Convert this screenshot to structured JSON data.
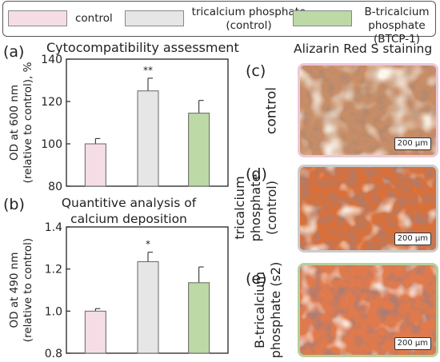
{
  "legend": {
    "items": [
      {
        "label": "control",
        "color": "#f5dde6"
      },
      {
        "label": "tricalcium phosphate\n(control)",
        "color": "#e6e6e6"
      },
      {
        "label": "B-tricalcium\nphosphate (BTCP-1)",
        "color": "#bcd9a6"
      }
    ]
  },
  "chart_data": [
    {
      "type": "bar",
      "panel": "(a)",
      "title": "Cytocompatibility assessment",
      "ylabel": "OD at 600 nm\n(relative to control), %",
      "ylim": [
        80,
        140
      ],
      "yticks": [
        "80",
        "100",
        "120",
        "140"
      ],
      "tick_values": [
        80,
        100,
        120,
        140
      ],
      "categories": [
        "control",
        "tricalcium phosphate (control)",
        "B-tricalcium phosphate (BTCP-1)"
      ],
      "values": [
        100,
        125,
        114.5
      ],
      "errors": [
        2.5,
        6,
        6
      ],
      "significance": [
        "",
        "**",
        ""
      ],
      "colors": [
        "#f5dde6",
        "#e6e6e6",
        "#bcd9a6"
      ]
    },
    {
      "type": "bar",
      "panel": "(b)",
      "title": "Quantitive analysis of\ncalcium deposition",
      "ylabel": "OD at 490 nm\n(relative to control)",
      "ylim": [
        0.8,
        1.4
      ],
      "yticks": [
        "0.8",
        "1.0",
        "1.2",
        "1.4"
      ],
      "tick_values": [
        0.8,
        1.0,
        1.2,
        1.4
      ],
      "categories": [
        "control",
        "tricalcium phosphate (control)",
        "B-tricalcium phosphate (BTCP-1)"
      ],
      "values": [
        1.0,
        1.235,
        1.135
      ],
      "errors": [
        0.012,
        0.045,
        0.075
      ],
      "significance": [
        "",
        "*",
        ""
      ],
      "colors": [
        "#f5dde6",
        "#e6e6e6",
        "#bcd9a6"
      ]
    }
  ],
  "staining": {
    "title": "Alizarin Red S staining",
    "panels": [
      {
        "letter": "(c)",
        "label": "control",
        "scale": "200 µm",
        "border": "#ecc8d9"
      },
      {
        "letter": "(d)",
        "label": "tricalcium\nphosphate\n(control)",
        "scale": "200 µm",
        "border": "#cccccc"
      },
      {
        "letter": "(e)",
        "label": "B-tricalcium\nphosphate (s2)",
        "scale": "200 µm",
        "border": "#b5cf9b"
      }
    ]
  }
}
